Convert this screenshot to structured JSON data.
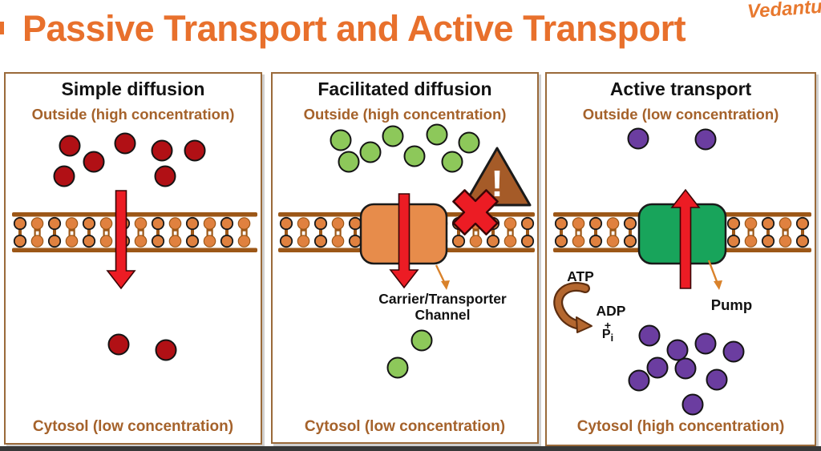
{
  "title": "Passive Transport and Active Transport",
  "brand": "Vedantu",
  "colors": {
    "accent_orange": "#E8702C",
    "label_brown": "#A5622B",
    "arrow_red": "#EC1C24",
    "molecule_red": "#B11015",
    "molecule_green": "#8DC85A",
    "molecule_purple": "#6B3DA0",
    "membrane_head": "#E0813F",
    "membrane_bar": "#9C5717",
    "carrier_orange": "#E78C4B",
    "pump_green": "#18A45B",
    "triangle_brown": "#A55B28"
  },
  "panels": [
    {
      "id": "simple-diffusion",
      "title": "Simple diffusion",
      "top_label": "Outside (high concentration)",
      "bottom_label": "Cytosol (low concentration)",
      "arrow_direction": "down",
      "molecules_outside": [
        [
          80,
          90
        ],
        [
          110,
          110
        ],
        [
          73,
          128
        ],
        [
          149,
          87
        ],
        [
          195,
          96
        ],
        [
          236,
          96
        ],
        [
          199,
          128
        ]
      ],
      "molecules_inside": [
        [
          141,
          338
        ],
        [
          200,
          345
        ]
      ]
    },
    {
      "id": "facilitated-diffusion",
      "title": "Facilitated diffusion",
      "top_label": "Outside (high concentration)",
      "bottom_label": "Cytosol (low concentration)",
      "arrow_direction": "down",
      "annotation_line1": "Carrier/Transporter",
      "annotation_line2": "Channel",
      "warning_mark": "!",
      "molecules_outside": [
        [
          85,
          83
        ],
        [
          122,
          98
        ],
        [
          95,
          110
        ],
        [
          150,
          78
        ],
        [
          177,
          103
        ],
        [
          205,
          76
        ],
        [
          224,
          110
        ],
        [
          245,
          86
        ]
      ],
      "molecules_inside": [
        [
          186,
          333
        ],
        [
          156,
          367
        ]
      ]
    },
    {
      "id": "active-transport",
      "title": "Active transport",
      "top_label": "Outside (low concentration)",
      "bottom_label": "Cytosol (high concentration)",
      "arrow_direction": "up",
      "atp_label": "ATP",
      "adp_label": "ADP",
      "plus_sign": "+",
      "pi_base": "P",
      "pi_sub": "i",
      "pump_label": "Pump",
      "molecules_outside": [
        [
          114,
          81
        ],
        [
          198,
          82
        ]
      ],
      "molecules_inside": [
        [
          128,
          327
        ],
        [
          163,
          345
        ],
        [
          198,
          337
        ],
        [
          233,
          347
        ],
        [
          138,
          367
        ],
        [
          173,
          368
        ],
        [
          212,
          382
        ],
        [
          115,
          383
        ],
        [
          182,
          413
        ]
      ]
    }
  ]
}
